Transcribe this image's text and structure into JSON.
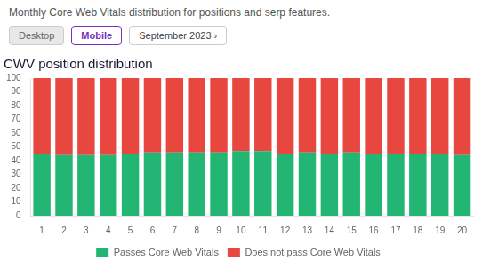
{
  "chart_data": {
    "type": "bar",
    "title": "CWV position distribution",
    "subtitle": "Monthly Core Web Vitals distribution for positions and serp features.",
    "annotations": [
      "Desktop",
      "Mobile",
      "September 2023 ›"
    ],
    "categories": [
      "1",
      "2",
      "3",
      "4",
      "5",
      "6",
      "7",
      "8",
      "9",
      "10",
      "11",
      "12",
      "13",
      "14",
      "15",
      "16",
      "17",
      "18",
      "19",
      "20"
    ],
    "series": [
      {
        "name": "Passes Core Web Vitals",
        "color": "#22b573",
        "values": [
          45,
          44,
          44,
          44,
          45,
          46,
          46,
          46,
          46,
          47,
          47,
          45,
          46,
          45,
          46,
          45,
          45,
          45,
          45,
          44
        ]
      },
      {
        "name": "Does not pass Core Web Vitals",
        "color": "#e8473f",
        "values": [
          55,
          56,
          56,
          56,
          55,
          54,
          54,
          54,
          54,
          53,
          53,
          55,
          54,
          55,
          54,
          55,
          55,
          55,
          55,
          56
        ]
      }
    ],
    "stacked": true,
    "ylim": [
      0,
      100
    ],
    "yticks": [
      0,
      10,
      20,
      30,
      40,
      50,
      60,
      70,
      80,
      90,
      100
    ],
    "grid": false,
    "legend": "bottom"
  }
}
